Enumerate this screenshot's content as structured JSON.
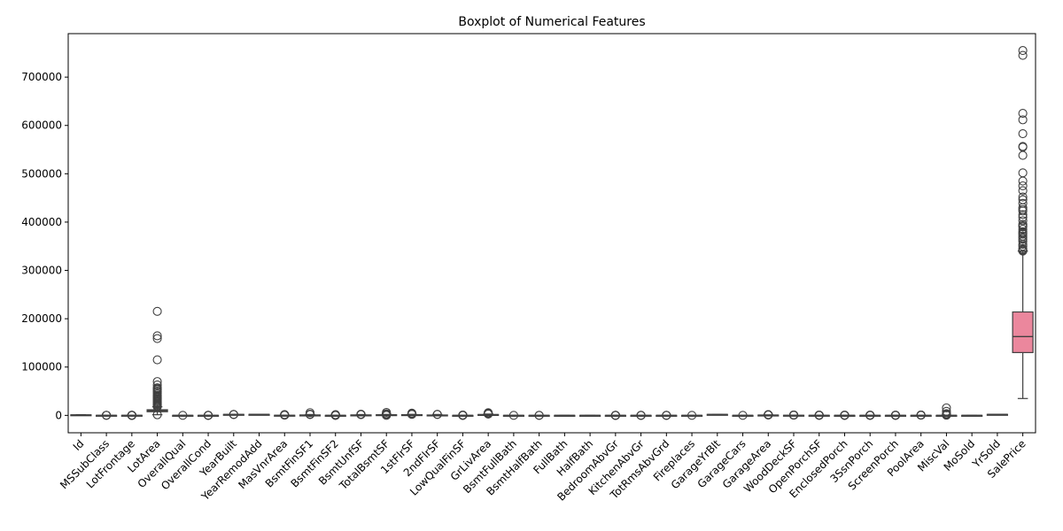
{
  "chart_data": {
    "type": "boxplot",
    "title": "Boxplot of Numerical Features",
    "xlabel": "",
    "ylabel": "",
    "ylim": [
      -36000,
      790000
    ],
    "yticks": [
      0,
      100000,
      200000,
      300000,
      400000,
      500000,
      600000,
      700000
    ],
    "ytick_labels": [
      "0",
      "100000",
      "200000",
      "300000",
      "400000",
      "500000",
      "600000",
      "700000"
    ],
    "categories": [
      "Id",
      "MSSubClass",
      "LotFrontage",
      "LotArea",
      "OverallQual",
      "OverallCond",
      "YearBuilt",
      "YearRemodAdd",
      "MasVnrArea",
      "BsmtFinSF1",
      "BsmtFinSF2",
      "BsmtUnfSF",
      "TotalBsmtSF",
      "1stFlrSF",
      "2ndFlrSF",
      "LowQualFinSF",
      "GrLivArea",
      "BsmtFullBath",
      "BsmtHalfBath",
      "FullBath",
      "HalfBath",
      "BedroomAbvGr",
      "KitchenAbvGr",
      "TotRmsAbvGrd",
      "Fireplaces",
      "GarageYrBlt",
      "GarageCars",
      "GarageArea",
      "WoodDeckSF",
      "OpenPorchSF",
      "EnclosedPorch",
      "3SsnPorch",
      "ScreenPorch",
      "PoolArea",
      "MiscVal",
      "MoSold",
      "YrSold",
      "SalePrice"
    ],
    "boxes": [
      {
        "min": 1,
        "q1": 366,
        "median": 730,
        "q3": 1095,
        "max": 1460,
        "outliers": []
      },
      {
        "min": 20,
        "q1": 20,
        "median": 50,
        "q3": 70,
        "max": 145,
        "outliers": [
          160,
          180,
          190
        ]
      },
      {
        "min": 32,
        "q1": 59,
        "median": 69,
        "q3": 80,
        "max": 111,
        "outliers": [
          21,
          24,
          120,
          130,
          140,
          150,
          160,
          174,
          182,
          313
        ]
      },
      {
        "min": 1300,
        "q1": 7554,
        "median": 9478,
        "q3": 11602,
        "max": 17673,
        "outliers": [
          1300,
          18000,
          20000,
          22000,
          24000,
          26000,
          28000,
          30000,
          32000,
          34000,
          36000,
          38000,
          40000,
          42000,
          45000,
          48000,
          50000,
          53000,
          55000,
          57000,
          63000,
          70000,
          115000,
          159000,
          164660,
          215245
        ]
      },
      {
        "min": 2,
        "q1": 5,
        "median": 6,
        "q3": 7,
        "max": 10,
        "outliers": [
          1
        ]
      },
      {
        "min": 3,
        "q1": 5,
        "median": 5,
        "q3": 6,
        "max": 7,
        "outliers": [
          1,
          2,
          8,
          9
        ]
      },
      {
        "min": 1885,
        "q1": 1954,
        "median": 1973,
        "q3": 2000,
        "max": 2010,
        "outliers": [
          1872,
          1875,
          1880
        ]
      },
      {
        "min": 1950,
        "q1": 1967,
        "median": 1994,
        "q3": 2004,
        "max": 2010,
        "outliers": []
      },
      {
        "min": 0,
        "q1": 0,
        "median": 0,
        "q3": 166,
        "max": 415,
        "outliers": [
          420,
          600,
          800,
          1000,
          1200,
          1600
        ]
      },
      {
        "min": 0,
        "q1": 0,
        "median": 384,
        "q3": 712,
        "max": 1767,
        "outliers": [
          1810,
          1904,
          2096,
          2260,
          5644
        ]
      },
      {
        "min": 0,
        "q1": 0,
        "median": 0,
        "q3": 0,
        "max": 0,
        "outliers": [
          28,
          100,
          300,
          500,
          700,
          900,
          1127,
          1474
        ]
      },
      {
        "min": 0,
        "q1": 223,
        "median": 478,
        "q3": 808,
        "max": 1685,
        "outliers": [
          1700,
          1800,
          1900,
          2002,
          2336
        ]
      },
      {
        "min": 105,
        "q1": 796,
        "median": 992,
        "q3": 1298,
        "max": 2046,
        "outliers": [
          0,
          2100,
          2300,
          2500,
          2700,
          3000,
          3206,
          6110
        ]
      },
      {
        "min": 334,
        "q1": 882,
        "median": 1087,
        "q3": 1391,
        "max": 2155,
        "outliers": [
          2200,
          2400,
          2600,
          2900,
          3138,
          3228,
          4692
        ]
      },
      {
        "min": 0,
        "q1": 0,
        "median": 0,
        "q3": 728,
        "max": 1818,
        "outliers": [
          1872,
          2065
        ]
      },
      {
        "min": 0,
        "q1": 0,
        "median": 0,
        "q3": 0,
        "max": 0,
        "outliers": [
          53,
          120,
          200,
          300,
          400,
          514,
          572
        ]
      },
      {
        "min": 334,
        "q1": 1130,
        "median": 1464,
        "q3": 1777,
        "max": 2727,
        "outliers": [
          2800,
          3000,
          3200,
          3400,
          3608,
          4316,
          4476,
          5642
        ]
      },
      {
        "min": 0,
        "q1": 0,
        "median": 0,
        "q3": 1,
        "max": 2,
        "outliers": [
          3
        ]
      },
      {
        "min": 0,
        "q1": 0,
        "median": 0,
        "q3": 0,
        "max": 0,
        "outliers": [
          1,
          2
        ]
      },
      {
        "min": 0,
        "q1": 1,
        "median": 2,
        "q3": 2,
        "max": 3,
        "outliers": []
      },
      {
        "min": 0,
        "q1": 0,
        "median": 0,
        "q3": 1,
        "max": 2,
        "outliers": []
      },
      {
        "min": 2,
        "q1": 2,
        "median": 3,
        "q3": 3,
        "max": 4,
        "outliers": [
          0,
          1,
          5,
          6,
          8
        ]
      },
      {
        "min": 1,
        "q1": 1,
        "median": 1,
        "q3": 1,
        "max": 1,
        "outliers": [
          0,
          2,
          3
        ]
      },
      {
        "min": 2,
        "q1": 5,
        "median": 6,
        "q3": 7,
        "max": 10,
        "outliers": [
          11,
          12,
          14
        ]
      },
      {
        "min": 0,
        "q1": 0,
        "median": 1,
        "q3": 1,
        "max": 2,
        "outliers": [
          3
        ]
      },
      {
        "min": 1900,
        "q1": 1961,
        "median": 1980,
        "q3": 2002,
        "max": 2010,
        "outliers": []
      },
      {
        "min": 0,
        "q1": 1,
        "median": 2,
        "q3": 2,
        "max": 3,
        "outliers": [
          4
        ]
      },
      {
        "min": 0,
        "q1": 334,
        "median": 480,
        "q3": 576,
        "max": 938,
        "outliers": [
          954,
          1014,
          1069,
          1166,
          1248,
          1356,
          1390,
          1418
        ]
      },
      {
        "min": 0,
        "q1": 0,
        "median": 0,
        "q3": 168,
        "max": 420,
        "outliers": [
          428,
          500,
          600,
          700,
          857
        ]
      },
      {
        "min": 0,
        "q1": 0,
        "median": 25,
        "q3": 68,
        "max": 170,
        "outliers": [
          172,
          250,
          330,
          400,
          523,
          547
        ]
      },
      {
        "min": 0,
        "q1": 0,
        "median": 0,
        "q3": 0,
        "max": 0,
        "outliers": [
          19,
          100,
          200,
          330,
          552
        ]
      },
      {
        "min": 0,
        "q1": 0,
        "median": 0,
        "q3": 0,
        "max": 0,
        "outliers": [
          23,
          153,
          245,
          320,
          407,
          508
        ]
      },
      {
        "min": 0,
        "q1": 0,
        "median": 0,
        "q3": 0,
        "max": 0,
        "outliers": [
          40,
          150,
          260,
          374,
          480
        ]
      },
      {
        "min": 0,
        "q1": 0,
        "median": 0,
        "q3": 0,
        "max": 0,
        "outliers": [
          480,
          512,
          555,
          576,
          648,
          738
        ]
      },
      {
        "min": 0,
        "q1": 0,
        "median": 0,
        "q3": 0,
        "max": 0,
        "outliers": [
          400,
          700,
          1150,
          2000,
          2500,
          3500,
          8300,
          15500
        ]
      },
      {
        "min": 1,
        "q1": 5,
        "median": 6,
        "q3": 8,
        "max": 12,
        "outliers": []
      },
      {
        "min": 2006,
        "q1": 2007,
        "median": 2008,
        "q3": 2009,
        "max": 2010,
        "outliers": []
      },
      {
        "min": 34900,
        "q1": 129975,
        "median": 163000,
        "q3": 214000,
        "max": 340000,
        "outliers": [
          340000,
          341000,
          342643,
          345000,
          350000,
          354000,
          360000,
          364000,
          367294,
          370878,
          375000,
          377426,
          380000,
          385000,
          390000,
          392000,
          395000,
          402861,
          410000,
          415298,
          423000,
          426000,
          430000,
          438780,
          446261,
          451950,
          465000,
          475000,
          485000,
          501837,
          538000,
          555000,
          556581,
          582933,
          611657,
          625000,
          745000,
          755000
        ]
      }
    ],
    "colors": [
      "#ea8e86",
      "#e8937b",
      "#e59a6a",
      "#dd9f58",
      "#d5a54f",
      "#cbab4b",
      "#bfb04a",
      "#b3b44c",
      "#a5b850",
      "#94bc55",
      "#80bf5b",
      "#68c262",
      "#4cc469",
      "#47c483",
      "#4ac396",
      "#4dc2a4",
      "#50c1b0",
      "#53c0bb",
      "#55bfc4",
      "#58becd",
      "#5bbcd6",
      "#5fbadf",
      "#65b7e8",
      "#6db3f1",
      "#7aaef4",
      "#8aa8f5",
      "#9ba2f5",
      "#ab9cf5",
      "#b996f4",
      "#c690f2",
      "#d28aef",
      "#dc86e9",
      "#e383e0",
      "#e882d4",
      "#eb83c7",
      "#ec84b9",
      "#ec86ab",
      "#eb879d"
    ]
  }
}
